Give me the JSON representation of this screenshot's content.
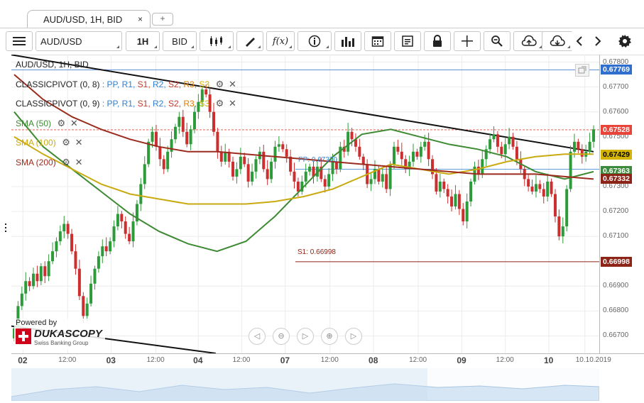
{
  "tab": {
    "label": "AUD/USD, 1H, BID",
    "close": "×",
    "add": "+"
  },
  "toolbar": {
    "instrument": "AUD/USD",
    "period": "1H",
    "side": "BID"
  },
  "legend": {
    "title": "AUD/USD, 1H, BID",
    "pivots": [
      {
        "name": "CLASSICPIVOT (0, 8)",
        "parts": [
          ": PP,",
          "R1,",
          "S1,",
          "R2,",
          "S2,",
          "R3,",
          "S3"
        ]
      },
      {
        "name": "CLASSICPIVOT (0, 9)",
        "parts": [
          ": PP,",
          "R1,",
          "S1,",
          "R2,",
          "S2,",
          "R3,",
          "S3"
        ]
      }
    ],
    "smas": [
      {
        "label": "SMA (50)",
        "color": "#3d8a33"
      },
      {
        "label": "SMA (100)",
        "color": "#c9aa10"
      },
      {
        "label": "SMA (200)",
        "color": "#9b2b1e"
      }
    ],
    "part_colors": [
      "#2f7fd2",
      "#2f7fd2",
      "#c0392b",
      "#2f7fd2",
      "#c0392b",
      "#e07b00",
      "#d4b000"
    ]
  },
  "annotations": {
    "pp": "PP: 0.67370",
    "s1": "S1: 0.66998"
  },
  "powered": {
    "line1": "Powered by",
    "brand": "DUKASCOPY",
    "sub": "Swiss Banking Group"
  },
  "chart_data": {
    "type": "candlestick",
    "instrument": "AUD/USD",
    "timeframe": "1H",
    "ylim": [
      0.6663,
      0.6783
    ],
    "y_ticks": [
      "0.67800",
      "0.67700",
      "0.67600",
      "0.67500",
      "0.67300",
      "0.67200",
      "0.67100",
      "0.66900",
      "0.66800",
      "0.66700"
    ],
    "x_labels": [
      {
        "text": "02",
        "x": 0.7,
        "day": true
      },
      {
        "text": "12:00",
        "x": 4.3,
        "day": false
      },
      {
        "text": "03",
        "x": 7.8,
        "day": true
      },
      {
        "text": "12:00",
        "x": 11.4,
        "day": false
      },
      {
        "text": "04",
        "x": 14.8,
        "day": true
      },
      {
        "text": "12:00",
        "x": 18.3,
        "day": false
      },
      {
        "text": "07",
        "x": 21.8,
        "day": true
      },
      {
        "text": "12:00",
        "x": 25.4,
        "day": false
      },
      {
        "text": "08",
        "x": 28.9,
        "day": true
      },
      {
        "text": "12:00",
        "x": 32.5,
        "day": false
      },
      {
        "text": "09",
        "x": 36.0,
        "day": true
      },
      {
        "text": "12:00",
        "x": 39.5,
        "day": false
      },
      {
        "text": "10",
        "x": 43.0,
        "day": true
      },
      {
        "text": "10.10.2019",
        "x": 45.9,
        "day": false
      }
    ],
    "price_badges": [
      {
        "value": "0.67769",
        "color": "#2f6fd0"
      },
      {
        "value": "0.67528",
        "color": "#e8443a"
      },
      {
        "value": "0.67429",
        "color": "#d4b400",
        "text_color": "#000"
      },
      {
        "value": "0.67363",
        "color": "#3c8a3c"
      },
      {
        "value": "0.67332",
        "color": "#8c2418"
      },
      {
        "value": "0.66998",
        "color": "#8c2418"
      }
    ],
    "closes": [
      0.6673,
      0.6682,
      0.6687,
      0.6692,
      0.669,
      0.6695,
      0.6692,
      0.6698,
      0.6694,
      0.67,
      0.6704,
      0.6708,
      0.6712,
      0.6715,
      0.6711,
      0.6704,
      0.6697,
      0.6686,
      0.6678,
      0.6683,
      0.6691,
      0.6697,
      0.6702,
      0.6706,
      0.6704,
      0.6708,
      0.6714,
      0.6719,
      0.6716,
      0.6711,
      0.6708,
      0.6716,
      0.6723,
      0.6731,
      0.6739,
      0.6748,
      0.6752,
      0.6746,
      0.6741,
      0.6737,
      0.6744,
      0.6749,
      0.6754,
      0.6758,
      0.6752,
      0.6747,
      0.6753,
      0.676,
      0.6764,
      0.6769,
      0.6767,
      0.676,
      0.6752,
      0.6744,
      0.674,
      0.6744,
      0.674,
      0.6734,
      0.6737,
      0.6742,
      0.6739,
      0.6732,
      0.6736,
      0.6741,
      0.6744,
      0.6737,
      0.6733,
      0.674,
      0.6746,
      0.6747,
      0.6745,
      0.6742,
      0.6736,
      0.6732,
      0.6728,
      0.6732,
      0.6736,
      0.6738,
      0.6734,
      0.6738,
      0.6733,
      0.673,
      0.6735,
      0.674,
      0.6737,
      0.6746,
      0.6744,
      0.6752,
      0.6749,
      0.6746,
      0.6742,
      0.6739,
      0.6731,
      0.6733,
      0.6737,
      0.6732,
      0.6735,
      0.6729,
      0.6739,
      0.6746,
      0.6744,
      0.6741,
      0.6737,
      0.674,
      0.6744,
      0.6742,
      0.6746,
      0.6748,
      0.6741,
      0.6735,
      0.6728,
      0.6732,
      0.6729,
      0.6726,
      0.6722,
      0.6727,
      0.6721,
      0.6716,
      0.6724,
      0.6732,
      0.6738,
      0.6735,
      0.6741,
      0.6745,
      0.6749,
      0.6751,
      0.6746,
      0.6743,
      0.6747,
      0.675,
      0.6746,
      0.6741,
      0.6737,
      0.6733,
      0.673,
      0.6728,
      0.6731,
      0.6729,
      0.6726,
      0.6732,
      0.6727,
      0.6718,
      0.671,
      0.6714,
      0.6729,
      0.6744,
      0.6748,
      0.6745,
      0.6742,
      0.6744,
      0.6748,
      0.6753
    ],
    "series": [
      {
        "name": "SMA (50)",
        "color": "#3d8a33",
        "values": [
          0.676,
          0.6746,
          0.6737,
          0.6728,
          0.6719,
          0.6712,
          0.6707,
          0.6704,
          0.6708,
          0.6718,
          0.673,
          0.6742,
          0.6751,
          0.6753,
          0.675,
          0.6747,
          0.6745,
          0.6742,
          0.6736,
          0.6733,
          0.6736
        ]
      },
      {
        "name": "SMA (100)",
        "color": "#c9aa10",
        "values": [
          0.675,
          0.6743,
          0.6737,
          0.6731,
          0.6727,
          0.6725,
          0.6723,
          0.6723,
          0.6723,
          0.6724,
          0.6726,
          0.6729,
          0.6734,
          0.6739,
          0.6737,
          0.6735,
          0.6737,
          0.674,
          0.6742,
          0.6743,
          0.6743
        ]
      },
      {
        "name": "SMA (200)",
        "color": "#9b2b1e",
        "values": [
          0.6775,
          0.6765,
          0.6758,
          0.6753,
          0.6749,
          0.6746,
          0.6744,
          0.6744,
          0.6743,
          0.6742,
          0.6741,
          0.674,
          0.6739,
          0.6738,
          0.6737,
          0.6736,
          0.6735,
          0.6735,
          0.6735,
          0.6734,
          0.6733
        ]
      }
    ],
    "lines": [
      {
        "name": "pivot-pp",
        "value": 0.6737
      },
      {
        "name": "pivot-s1",
        "value": 0.66998
      },
      {
        "name": "current-price",
        "value": 0.67528
      },
      {
        "name": "upper-level",
        "value": 0.67769
      }
    ]
  }
}
